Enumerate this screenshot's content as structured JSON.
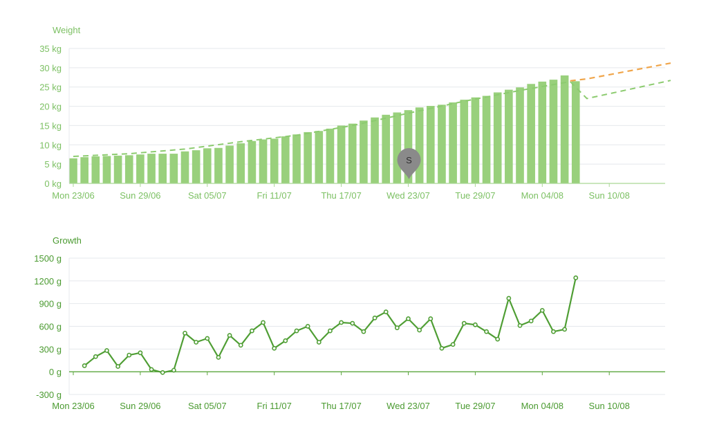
{
  "colors": {
    "weight_text": "#7cc063",
    "weight_bar": "#99d07c",
    "weight_trend": "#8ccb6f",
    "weight_projection": "#f0a54a",
    "growth_line": "#4f9e34",
    "growth_text": "#4a9a30",
    "grid": "#e5e8ec",
    "axis_weight": "#a9d795",
    "axis_growth": "#5aa63c",
    "marker": "#8a8a8a",
    "marker_text": "#2f2f2f"
  },
  "marker": {
    "label": "S",
    "date_index": 30
  },
  "chart_data": [
    {
      "type": "bar",
      "title": "Weight",
      "ylim": [
        0,
        35
      ],
      "y_ticks": [
        {
          "value": 0,
          "label": "0 kg"
        },
        {
          "value": 5,
          "label": "5 kg"
        },
        {
          "value": 10,
          "label": "10 kg"
        },
        {
          "value": 15,
          "label": "15 kg"
        },
        {
          "value": 20,
          "label": "20 kg"
        },
        {
          "value": 25,
          "label": "25 kg"
        },
        {
          "value": 30,
          "label": "30 kg"
        },
        {
          "value": 35,
          "label": "35 kg"
        }
      ],
      "x_ticks": [
        "Mon 23/06",
        "Sun 29/06",
        "Sat 05/07",
        "Fri 11/07",
        "Thu 17/07",
        "Wed 23/07",
        "Tue 29/07",
        "Mon 04/08",
        "Sun 10/08"
      ],
      "start_date": "2025-06-23",
      "values": [
        6.5,
        6.8,
        7.0,
        7.1,
        7.2,
        7.3,
        7.5,
        7.7,
        7.7,
        7.7,
        8.3,
        8.6,
        9.1,
        9.2,
        9.8,
        10.4,
        11.0,
        11.4,
        11.6,
        12.2,
        12.7,
        13.3,
        13.6,
        14.2,
        15.0,
        15.5,
        16.3,
        17.1,
        17.8,
        18.4,
        19.0,
        19.7,
        20.1,
        20.4,
        21.0,
        21.7,
        22.3,
        22.7,
        23.6,
        24.3,
        24.9,
        25.8,
        26.4,
        26.9,
        28.0,
        26.5
      ],
      "trend": [
        [
          0,
          7.0
        ],
        [
          5,
          7.7
        ],
        [
          10,
          8.9
        ],
        [
          15,
          10.8
        ],
        [
          20,
          12.5
        ],
        [
          25,
          15.0
        ],
        [
          30,
          18.2
        ],
        [
          35,
          21.3
        ],
        [
          40,
          24.1
        ],
        [
          44.5,
          26.4
        ],
        [
          46,
          22.0
        ],
        [
          53.5,
          26.7
        ]
      ],
      "projection": [
        [
          44.5,
          26.6
        ],
        [
          46,
          27.1
        ],
        [
          53.5,
          31.2
        ]
      ]
    },
    {
      "type": "line",
      "title": "Growth",
      "ylim": [
        -300,
        1500
      ],
      "y_ticks": [
        {
          "value": -300,
          "label": "-300 g"
        },
        {
          "value": 0,
          "label": "0 g"
        },
        {
          "value": 300,
          "label": "300 g"
        },
        {
          "value": 600,
          "label": "600 g"
        },
        {
          "value": 900,
          "label": "900 g"
        },
        {
          "value": 1200,
          "label": "1200 g"
        },
        {
          "value": 1500,
          "label": "1500 g"
        }
      ],
      "x_ticks": [
        "Mon 23/06",
        "Sun 29/06",
        "Sat 05/07",
        "Fri 11/07",
        "Thu 17/07",
        "Wed 23/07",
        "Tue 29/07",
        "Mon 04/08",
        "Sun 10/08"
      ],
      "start_date": "2025-06-23",
      "values": [
        80,
        200,
        280,
        70,
        220,
        250,
        30,
        -10,
        20,
        510,
        390,
        440,
        190,
        480,
        350,
        540,
        650,
        310,
        410,
        540,
        600,
        390,
        540,
        650,
        640,
        530,
        710,
        790,
        580,
        700,
        550,
        700,
        310,
        360,
        640,
        620,
        530,
        430,
        970,
        610,
        670,
        810,
        530,
        560,
        1240
      ]
    }
  ]
}
